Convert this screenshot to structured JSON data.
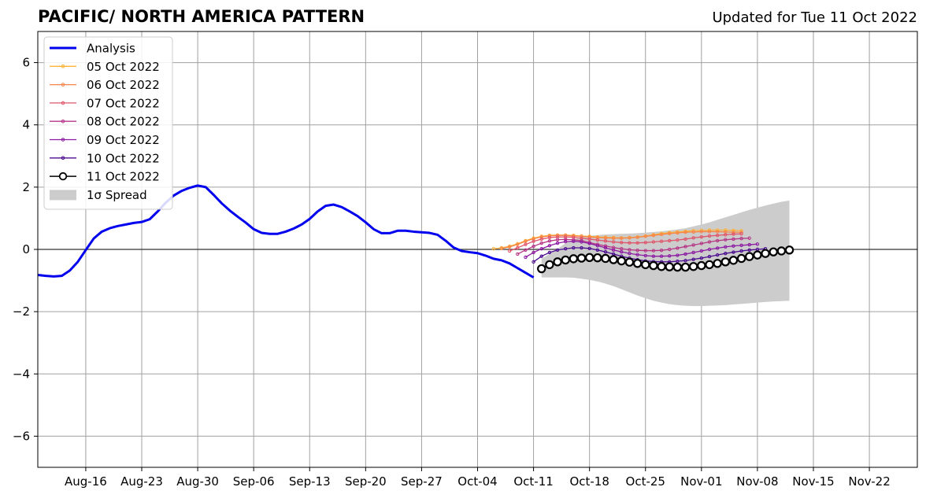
{
  "title": "PACIFIC/ NORTH AMERICA PATTERN",
  "subtitle": "Updated for Tue 11 Oct 2022",
  "chart_data": {
    "type": "line",
    "title": "PACIFIC/ NORTH AMERICA PATTERN",
    "subtitle": "Updated for Tue 11 Oct 2022",
    "xlabel": "",
    "ylabel": "",
    "x_start": "2022-08-10",
    "x_end": "2022-11-28",
    "x_ticks": [
      "Aug-16",
      "Aug-23",
      "Aug-30",
      "Sep-06",
      "Sep-13",
      "Sep-20",
      "Sep-27",
      "Oct-04",
      "Oct-11",
      "Oct-18",
      "Oct-25",
      "Nov-01",
      "Nov-08",
      "Nov-15",
      "Nov-22"
    ],
    "x_tick_dates": [
      "2022-08-16",
      "2022-08-23",
      "2022-08-30",
      "2022-09-06",
      "2022-09-13",
      "2022-09-20",
      "2022-09-27",
      "2022-10-04",
      "2022-10-11",
      "2022-10-18",
      "2022-10-25",
      "2022-11-01",
      "2022-11-08",
      "2022-11-15",
      "2022-11-22"
    ],
    "ylim": [
      -7,
      7
    ],
    "y_ticks": [
      -6,
      -4,
      -2,
      0,
      2,
      4,
      6
    ],
    "y_tick_labels": [
      "−6",
      "−4",
      "−2",
      "0",
      "2",
      "4",
      "6"
    ],
    "grid": true,
    "legend_position": "upper-left",
    "legend": [
      {
        "label": "Analysis",
        "color": "#0000ee",
        "style": "thick-line"
      },
      {
        "label": "05 Oct 2022",
        "color": "#fcb33a",
        "style": "line-dot"
      },
      {
        "label": "06 Oct 2022",
        "color": "#f6844a",
        "style": "line-dot"
      },
      {
        "label": "07 Oct 2022",
        "color": "#e0556b",
        "style": "line-dot"
      },
      {
        "label": "08 Oct 2022",
        "color": "#b63587",
        "style": "line-dot"
      },
      {
        "label": "09 Oct 2022",
        "color": "#8c1aa2",
        "style": "line-dot"
      },
      {
        "label": "10 Oct 2022",
        "color": "#4b0b8f",
        "style": "line-dot"
      },
      {
        "label": "11 Oct 2022",
        "color": "#000000",
        "style": "line-circle"
      },
      {
        "label": "1σ Spread",
        "color": "#cccccc",
        "style": "patch"
      }
    ],
    "analysis": {
      "name": "Analysis",
      "color": "#0000ee",
      "x": [
        "2022-08-10",
        "2022-08-11",
        "2022-08-12",
        "2022-08-13",
        "2022-08-14",
        "2022-08-15",
        "2022-08-16",
        "2022-08-17",
        "2022-08-18",
        "2022-08-19",
        "2022-08-20",
        "2022-08-21",
        "2022-08-22",
        "2022-08-23",
        "2022-08-24",
        "2022-08-25",
        "2022-08-26",
        "2022-08-27",
        "2022-08-28",
        "2022-08-29",
        "2022-08-30",
        "2022-08-31",
        "2022-09-01",
        "2022-09-02",
        "2022-09-03",
        "2022-09-04",
        "2022-09-05",
        "2022-09-06",
        "2022-09-07",
        "2022-09-08",
        "2022-09-09",
        "2022-09-10",
        "2022-09-11",
        "2022-09-12",
        "2022-09-13",
        "2022-09-14",
        "2022-09-15",
        "2022-09-16",
        "2022-09-17",
        "2022-09-18",
        "2022-09-19",
        "2022-09-20",
        "2022-09-21",
        "2022-09-22",
        "2022-09-23",
        "2022-09-24",
        "2022-09-25",
        "2022-09-26",
        "2022-09-27",
        "2022-09-28",
        "2022-09-29",
        "2022-09-30",
        "2022-10-01",
        "2022-10-02",
        "2022-10-03",
        "2022-10-04",
        "2022-10-05",
        "2022-10-06",
        "2022-10-07",
        "2022-10-08",
        "2022-10-09",
        "2022-10-10",
        "2022-10-11"
      ],
      "y": [
        -0.82,
        -0.85,
        -0.87,
        -0.85,
        -0.68,
        -0.4,
        -0.02,
        0.35,
        0.57,
        0.68,
        0.75,
        0.8,
        0.85,
        0.88,
        0.97,
        1.22,
        1.5,
        1.73,
        1.88,
        1.98,
        2.05,
        2.0,
        1.75,
        1.48,
        1.25,
        1.05,
        0.86,
        0.65,
        0.53,
        0.5,
        0.5,
        0.57,
        0.67,
        0.8,
        0.98,
        1.22,
        1.4,
        1.44,
        1.36,
        1.22,
        1.07,
        0.87,
        0.65,
        0.52,
        0.52,
        0.6,
        0.6,
        0.57,
        0.55,
        0.53,
        0.47,
        0.28,
        0.06,
        -0.05,
        -0.09,
        -0.12,
        -0.2,
        -0.3,
        -0.35,
        -0.45,
        -0.6,
        -0.75,
        -0.9
      ]
    },
    "forecasts": [
      {
        "name": "05 Oct 2022",
        "color": "#fcb33a",
        "start": "2022-10-06",
        "y": [
          0.02,
          0.05,
          0.1,
          0.18,
          0.28,
          0.36,
          0.42,
          0.45,
          0.46,
          0.46,
          0.45,
          0.43,
          0.42,
          0.4,
          0.39,
          0.38,
          0.37,
          0.38,
          0.4,
          0.43,
          0.47,
          0.51,
          0.54,
          0.56,
          0.58,
          0.6,
          0.61,
          0.62,
          0.62,
          0.62,
          0.61,
          0.6
        ]
      },
      {
        "name": "06 Oct 2022",
        "color": "#f6844a",
        "start": "2022-10-07",
        "y": [
          0.03,
          0.08,
          0.16,
          0.26,
          0.34,
          0.4,
          0.43,
          0.45,
          0.45,
          0.43,
          0.42,
          0.4,
          0.38,
          0.37,
          0.36,
          0.36,
          0.37,
          0.39,
          0.42,
          0.45,
          0.48,
          0.51,
          0.53,
          0.55,
          0.56,
          0.57,
          0.57,
          0.57,
          0.56,
          0.55,
          0.55
        ]
      },
      {
        "name": "07 Oct 2022",
        "color": "#e0556b",
        "start": "2022-10-08",
        "y": [
          -0.05,
          0.05,
          0.16,
          0.26,
          0.33,
          0.38,
          0.4,
          0.4,
          0.39,
          0.36,
          0.33,
          0.3,
          0.27,
          0.24,
          0.22,
          0.21,
          0.21,
          0.22,
          0.24,
          0.26,
          0.28,
          0.3,
          0.33,
          0.37,
          0.4,
          0.43,
          0.45,
          0.47,
          0.49,
          0.5
        ]
      },
      {
        "name": "08 Oct 2022",
        "color": "#b63587",
        "start": "2022-10-09",
        "y": [
          -0.15,
          -0.02,
          0.1,
          0.2,
          0.27,
          0.31,
          0.32,
          0.31,
          0.28,
          0.22,
          0.16,
          0.11,
          0.06,
          0.02,
          -0.01,
          -0.03,
          -0.04,
          -0.04,
          -0.03,
          0.0,
          0.04,
          0.09,
          0.14,
          0.19,
          0.24,
          0.28,
          0.31,
          0.33,
          0.35,
          0.36
        ]
      },
      {
        "name": "09 Oct 2022",
        "color": "#8c1aa2",
        "start": "2022-10-10",
        "y": [
          -0.25,
          -0.1,
          0.02,
          0.12,
          0.2,
          0.25,
          0.26,
          0.24,
          0.19,
          0.12,
          0.05,
          -0.02,
          -0.08,
          -0.13,
          -0.17,
          -0.2,
          -0.22,
          -0.22,
          -0.21,
          -0.19,
          -0.15,
          -0.1,
          -0.05,
          0.0,
          0.04,
          0.08,
          0.11,
          0.13,
          0.15,
          0.17
        ]
      },
      {
        "name": "10 Oct 2022",
        "color": "#4b0b8f",
        "start": "2022-10-11",
        "y": [
          -0.4,
          -0.22,
          -0.1,
          -0.02,
          0.02,
          0.05,
          0.05,
          0.03,
          -0.02,
          -0.08,
          -0.15,
          -0.22,
          -0.28,
          -0.33,
          -0.37,
          -0.39,
          -0.4,
          -0.4,
          -0.38,
          -0.36,
          -0.32,
          -0.28,
          -0.23,
          -0.18,
          -0.13,
          -0.09,
          -0.05,
          -0.02,
          0.0,
          0.02
        ]
      },
      {
        "name": "11 Oct 2022",
        "color": "#000000",
        "start": "2022-10-12",
        "y": [
          -0.62,
          -0.49,
          -0.4,
          -0.34,
          -0.3,
          -0.28,
          -0.26,
          -0.27,
          -0.29,
          -0.33,
          -0.37,
          -0.41,
          -0.45,
          -0.49,
          -0.52,
          -0.55,
          -0.56,
          -0.57,
          -0.57,
          -0.55,
          -0.52,
          -0.49,
          -0.45,
          -0.4,
          -0.35,
          -0.29,
          -0.23,
          -0.18,
          -0.13,
          -0.08,
          -0.05,
          -0.02
        ]
      }
    ],
    "spread": {
      "name": "1σ Spread",
      "color": "#cccccc",
      "start": "2022-10-12",
      "upper": [
        -0.3,
        -0.15,
        0.02,
        0.2,
        0.32,
        0.4,
        0.44,
        0.46,
        0.48,
        0.49,
        0.5,
        0.51,
        0.52,
        0.54,
        0.56,
        0.58,
        0.61,
        0.64,
        0.68,
        0.74,
        0.8,
        0.87,
        0.95,
        1.03,
        1.11,
        1.19,
        1.27,
        1.34,
        1.41,
        1.47,
        1.53,
        1.57
      ],
      "lower": [
        -0.9,
        -0.9,
        -0.9,
        -0.9,
        -0.91,
        -0.94,
        -0.98,
        -1.03,
        -1.1,
        -1.18,
        -1.28,
        -1.38,
        -1.48,
        -1.57,
        -1.65,
        -1.71,
        -1.76,
        -1.79,
        -1.81,
        -1.82,
        -1.82,
        -1.81,
        -1.8,
        -1.79,
        -1.77,
        -1.75,
        -1.73,
        -1.71,
        -1.69,
        -1.67,
        -1.66,
        -1.65
      ]
    }
  }
}
